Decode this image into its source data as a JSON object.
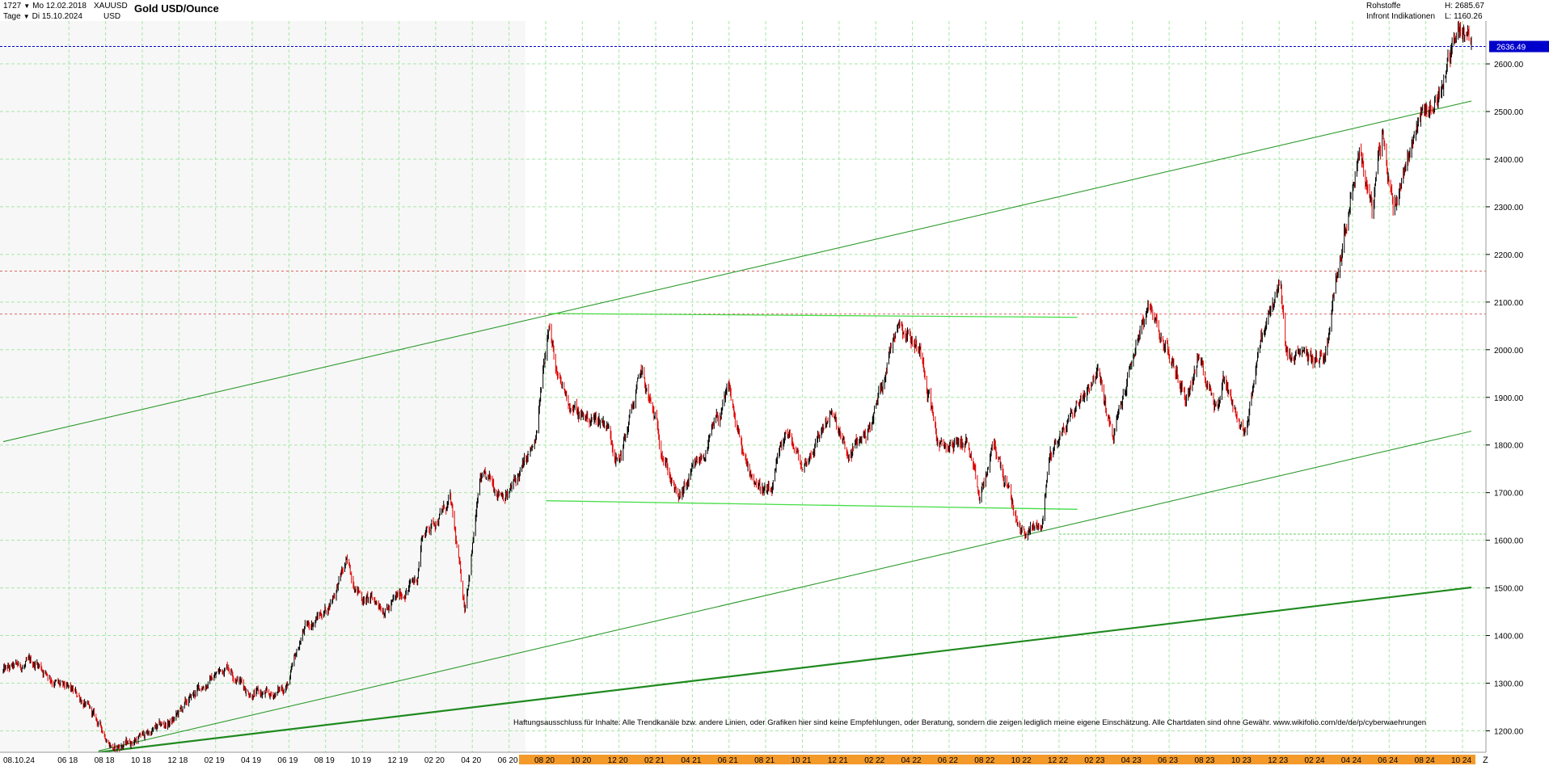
{
  "header": {
    "bar_count": "1727",
    "start_date": "Mo 12.02.2018",
    "interval": "Tage",
    "end_date": "Di 15.10.2024",
    "symbol": "XAUUSD",
    "currency": "USD",
    "title": "Gold USD/Ounce",
    "category": "Rohstoffe",
    "source": "Infront Indikationen",
    "high": "H: 2685.67",
    "low": "L: 1160.26"
  },
  "disclaimer": "Haftungsausschluss für Inhalte: Alle Trendkanäle bzw. andere Linien, oder Grafiken hier sind keine Empfehlungen, oder Beratung, sondern die zeigen lediglich meine eigene Einschätzung. Alle Chartdaten sind ohne Gewähr.  www.wikifolio.com/de/de/p/cyberwaehrungen",
  "axis_corner_label": "Z",
  "last_price_label": "2636.49",
  "colors": {
    "candle_up": "#000000",
    "candle_down": "#e00000",
    "trendline": "#2e9a2e",
    "bright_line": "#44dd44",
    "current_price_line": "#0000cc",
    "level_line": "#dd6666",
    "time_bar": "#f39a2b",
    "grid": "#a6e6a6"
  },
  "chart_data": {
    "type": "candlestick",
    "title": "Gold USD/Ounce",
    "ylim": [
      1155,
      2690
    ],
    "y_ticks": [
      1200,
      1300,
      1400,
      1500,
      1600,
      1700,
      1800,
      1900,
      2000,
      2100,
      2200,
      2300,
      2400,
      2500,
      2600
    ],
    "x_ticks": [
      "08.10.24",
      "06 18",
      "08 18",
      "10 18",
      "12 18",
      "02 19",
      "04 19",
      "06 19",
      "08 19",
      "10 19",
      "12 19",
      "02 20",
      "04 20",
      "06 20",
      "08 20",
      "10 20",
      "12 20",
      "02 21",
      "04 21",
      "06 21",
      "08 21",
      "10 21",
      "12 21",
      "02 22",
      "04 22",
      "06 22",
      "08 22",
      "10 22",
      "12 22",
      "02 23",
      "04 23",
      "06 23",
      "08 23",
      "10 23",
      "12 23",
      "02 24",
      "04 24",
      "06 24",
      "08 24",
      "10 24"
    ],
    "price_path": [
      [
        "2018-02-12",
        1325
      ],
      [
        "2018-04-10",
        1342
      ],
      [
        "2018-05-20",
        1290
      ],
      [
        "2018-06-20",
        1270
      ],
      [
        "2018-08-16",
        1162
      ],
      [
        "2018-10-10",
        1195
      ],
      [
        "2018-11-20",
        1220
      ],
      [
        "2019-01-01",
        1285
      ],
      [
        "2019-02-20",
        1340
      ],
      [
        "2019-03-25",
        1285
      ],
      [
        "2019-05-01",
        1270
      ],
      [
        "2019-06-01",
        1300
      ],
      [
        "2019-06-25",
        1410
      ],
      [
        "2019-08-05",
        1460
      ],
      [
        "2019-09-04",
        1550
      ],
      [
        "2019-10-01",
        1480
      ],
      [
        "2019-11-15",
        1460
      ],
      [
        "2019-12-31",
        1520
      ],
      [
        "2020-01-08",
        1610
      ],
      [
        "2020-02-24",
        1680
      ],
      [
        "2020-03-19",
        1460
      ],
      [
        "2020-04-14",
        1725
      ],
      [
        "2020-06-01",
        1700
      ],
      [
        "2020-07-15",
        1800
      ],
      [
        "2020-08-06",
        2075
      ],
      [
        "2020-08-20",
        1930
      ],
      [
        "2020-09-25",
        1860
      ],
      [
        "2020-11-09",
        1850
      ],
      [
        "2020-11-30",
        1765
      ],
      [
        "2021-01-06",
        1950
      ],
      [
        "2021-03-08",
        1680
      ],
      [
        "2021-04-20",
        1780
      ],
      [
        "2021-06-01",
        1910
      ],
      [
        "2021-06-29",
        1750
      ],
      [
        "2021-08-09",
        1690
      ],
      [
        "2021-09-03",
        1830
      ],
      [
        "2021-10-01",
        1750
      ],
      [
        "2021-11-16",
        1870
      ],
      [
        "2021-12-15",
        1770
      ],
      [
        "2022-01-25",
        1850
      ],
      [
        "2022-03-08",
        2070
      ],
      [
        "2022-04-18",
        1990
      ],
      [
        "2022-05-16",
        1790
      ],
      [
        "2022-06-30",
        1810
      ],
      [
        "2022-07-21",
        1680
      ],
      [
        "2022-08-15",
        1800
      ],
      [
        "2022-09-28",
        1615
      ],
      [
        "2022-11-02",
        1630
      ],
      [
        "2022-11-15",
        1780
      ],
      [
        "2023-02-02",
        1960
      ],
      [
        "2023-02-28",
        1810
      ],
      [
        "2023-04-13",
        2040
      ],
      [
        "2023-05-04",
        2080
      ],
      [
        "2023-06-29",
        1900
      ],
      [
        "2023-07-20",
        1980
      ],
      [
        "2023-08-21",
        1885
      ],
      [
        "2023-09-01",
        1945
      ],
      [
        "2023-10-05",
        1815
      ],
      [
        "2023-10-27",
        2005
      ],
      [
        "2023-12-04",
        2140
      ],
      [
        "2023-12-13",
        1975
      ],
      [
        "2024-02-14",
        1985
      ],
      [
        "2024-03-08",
        2180
      ],
      [
        "2024-04-12",
        2430
      ],
      [
        "2024-05-03",
        2290
      ],
      [
        "2024-05-20",
        2450
      ],
      [
        "2024-06-07",
        2300
      ],
      [
        "2024-07-17",
        2480
      ],
      [
        "2024-08-20",
        2530
      ],
      [
        "2024-09-26",
        2685
      ],
      [
        "2024-10-15",
        2636
      ]
    ],
    "lines": [
      {
        "kind": "upper-channel",
        "from": [
          "2018-02-12",
          1807
        ],
        "to": [
          "2024-10-15",
          2522
        ]
      },
      {
        "kind": "lower-channel",
        "from": [
          "2018-07-20",
          1158
        ],
        "to": [
          "2024-10-15",
          1829
        ]
      },
      {
        "kind": "long-term-support",
        "from": [
          "2018-07-20",
          1155
        ],
        "to": [
          "2024-10-15",
          1501
        ]
      },
      {
        "kind": "resistance",
        "from": [
          "2020-08-06",
          2076
        ],
        "to": [
          "2022-12-31",
          2068
        ]
      },
      {
        "kind": "support",
        "from": [
          "2020-08-01",
          1683
        ],
        "to": [
          "2022-12-31",
          1665
        ]
      }
    ],
    "levels": [
      {
        "kind": "current-price",
        "value": 2636.49
      },
      {
        "kind": "level",
        "value": 2165
      },
      {
        "kind": "level",
        "value": 2075
      },
      {
        "kind": "level",
        "value": 1613
      }
    ]
  }
}
